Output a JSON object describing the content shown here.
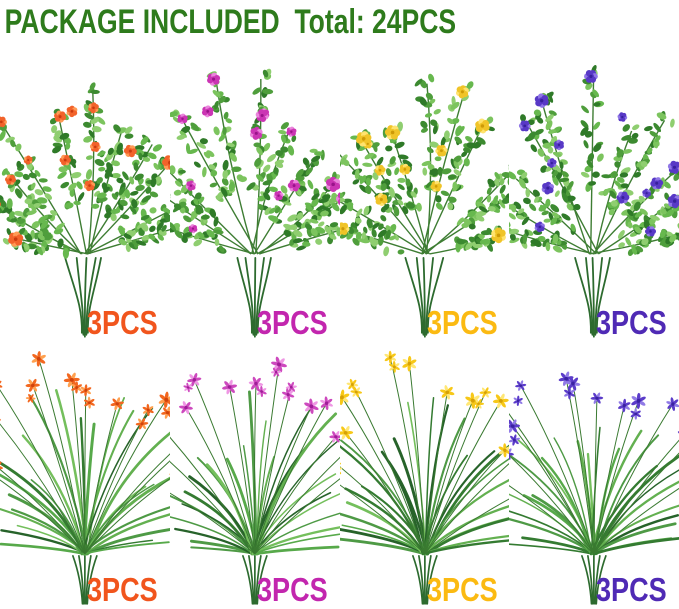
{
  "title": {
    "text": "PACKAGE INCLUDED  Total: 24PCS",
    "color": "#2e7b1c"
  },
  "palette": {
    "background": "#ffffff",
    "stem": "#2d6b2f",
    "branch": "#3e7d33",
    "stalk": "#3a7a31",
    "leaf_greens": [
      "#4f9e3c",
      "#67b84e",
      "#3c8a30",
      "#7cc45e",
      "#8fce70",
      "#2f7a28"
    ],
    "grass_greens": [
      "#4e9a45",
      "#63b050",
      "#347b31",
      "#74bf5c",
      "#27632a",
      "#57a94a"
    ]
  },
  "bouquets": [
    {
      "name": "eucalyptus-orange",
      "style": "eucalyptus",
      "label": "3PCS",
      "label_color": "#f1551d",
      "flower": "#f2632b",
      "flower_dark": "#c93a0e",
      "flower_light": "#ff9a55"
    },
    {
      "name": "eucalyptus-magenta",
      "style": "eucalyptus",
      "label": "3PCS",
      "label_color": "#c226ae",
      "flower": "#cb35b4",
      "flower_dark": "#99138a",
      "flower_light": "#ea85dc"
    },
    {
      "name": "eucalyptus-yellow",
      "style": "eucalyptus",
      "label": "3PCS",
      "label_color": "#fbba12",
      "flower": "#f0c428",
      "flower_dark": "#cd9a07",
      "flower_light": "#ffe36e"
    },
    {
      "name": "eucalyptus-purple",
      "style": "eucalyptus",
      "label": "3PCS",
      "label_color": "#4f2ab5",
      "flower": "#5839c6",
      "flower_dark": "#37209b",
      "flower_light": "#8f76e6"
    },
    {
      "name": "grass-orange",
      "style": "grass",
      "label": "3PCS",
      "label_color": "#f1551d",
      "flower": "#f2671f",
      "flower_dark": "#cf430c",
      "flower_light": "#ffa04f"
    },
    {
      "name": "grass-magenta",
      "style": "grass",
      "label": "3PCS",
      "label_color": "#c226ae",
      "flower": "#cd49be",
      "flower_dark": "#a01d98",
      "flower_light": "#ef97e4"
    },
    {
      "name": "grass-yellow",
      "style": "grass",
      "label": "3PCS",
      "label_color": "#fbba12",
      "flower": "#f7c818",
      "flower_dark": "#d6a107",
      "flower_light": "#ffe775"
    },
    {
      "name": "grass-purple",
      "style": "grass",
      "label": "3PCS",
      "label_color": "#4f2ab5",
      "flower": "#5b3cc9",
      "flower_dark": "#3a22a2",
      "flower_light": "#907ae6"
    }
  ]
}
